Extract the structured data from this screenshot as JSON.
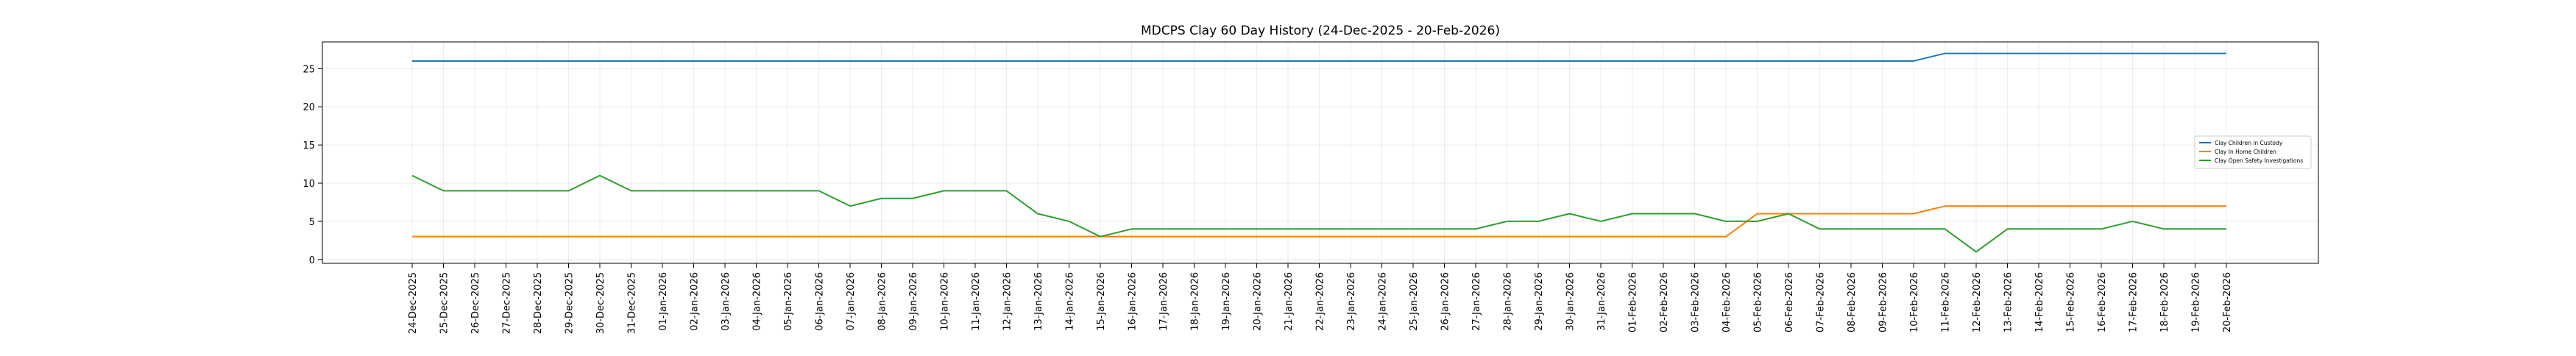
{
  "chart_data": {
    "type": "line",
    "title": "MDCPS Clay 60 Day History (24-Dec-2025 - 20-Feb-2026)",
    "xlabel": "",
    "ylabel": "",
    "ylim": [
      -0.5,
      28.5
    ],
    "yticks": [
      0,
      5,
      10,
      15,
      20,
      25
    ],
    "grid": true,
    "legend_position": "right",
    "x": [
      "24-Dec-2025",
      "25-Dec-2025",
      "26-Dec-2025",
      "27-Dec-2025",
      "28-Dec-2025",
      "29-Dec-2025",
      "30-Dec-2025",
      "31-Dec-2025",
      "01-Jan-2026",
      "02-Jan-2026",
      "03-Jan-2026",
      "04-Jan-2026",
      "05-Jan-2026",
      "06-Jan-2026",
      "07-Jan-2026",
      "08-Jan-2026",
      "09-Jan-2026",
      "10-Jan-2026",
      "11-Jan-2026",
      "12-Jan-2026",
      "13-Jan-2026",
      "14-Jan-2026",
      "15-Jan-2026",
      "16-Jan-2026",
      "17-Jan-2026",
      "18-Jan-2026",
      "19-Jan-2026",
      "20-Jan-2026",
      "21-Jan-2026",
      "22-Jan-2026",
      "23-Jan-2026",
      "24-Jan-2026",
      "25-Jan-2026",
      "26-Jan-2026",
      "27-Jan-2026",
      "28-Jan-2026",
      "29-Jan-2026",
      "30-Jan-2026",
      "31-Jan-2026",
      "01-Feb-2026",
      "02-Feb-2026",
      "03-Feb-2026",
      "04-Feb-2026",
      "05-Feb-2026",
      "06-Feb-2026",
      "07-Feb-2026",
      "08-Feb-2026",
      "09-Feb-2026",
      "10-Feb-2026",
      "11-Feb-2026",
      "12-Feb-2026",
      "13-Feb-2026",
      "14-Feb-2026",
      "15-Feb-2026",
      "16-Feb-2026",
      "17-Feb-2026",
      "18-Feb-2026",
      "19-Feb-2026",
      "20-Feb-2026"
    ],
    "series": [
      {
        "name": "Clay Children in Custody",
        "color": "#1f77b4",
        "values": [
          26,
          26,
          26,
          26,
          26,
          26,
          26,
          26,
          26,
          26,
          26,
          26,
          26,
          26,
          26,
          26,
          26,
          26,
          26,
          26,
          26,
          26,
          26,
          26,
          26,
          26,
          26,
          26,
          26,
          26,
          26,
          26,
          26,
          26,
          26,
          26,
          26,
          26,
          26,
          26,
          26,
          26,
          26,
          26,
          26,
          26,
          26,
          26,
          26,
          27,
          27,
          27,
          27,
          27,
          27,
          27,
          27,
          27,
          27
        ]
      },
      {
        "name": "Clay In Home Children",
        "color": "#ff7f0e",
        "values": [
          3,
          3,
          3,
          3,
          3,
          3,
          3,
          3,
          3,
          3,
          3,
          3,
          3,
          3,
          3,
          3,
          3,
          3,
          3,
          3,
          3,
          3,
          3,
          3,
          3,
          3,
          3,
          3,
          3,
          3,
          3,
          3,
          3,
          3,
          3,
          3,
          3,
          3,
          3,
          3,
          3,
          3,
          3,
          6,
          6,
          6,
          6,
          6,
          6,
          7,
          7,
          7,
          7,
          7,
          7,
          7,
          7,
          7,
          7
        ]
      },
      {
        "name": "Clay Open Safety Investigations",
        "color": "#2ca02c",
        "values": [
          11,
          9,
          9,
          9,
          9,
          9,
          11,
          9,
          9,
          9,
          9,
          9,
          9,
          9,
          7,
          8,
          8,
          9,
          9,
          9,
          6,
          5,
          3,
          4,
          4,
          4,
          4,
          4,
          4,
          4,
          4,
          4,
          4,
          4,
          4,
          5,
          5,
          6,
          5,
          6,
          6,
          6,
          5,
          5,
          6,
          4,
          4,
          4,
          4,
          4,
          1,
          4,
          4,
          4,
          4,
          5,
          4,
          4,
          4
        ]
      }
    ]
  }
}
